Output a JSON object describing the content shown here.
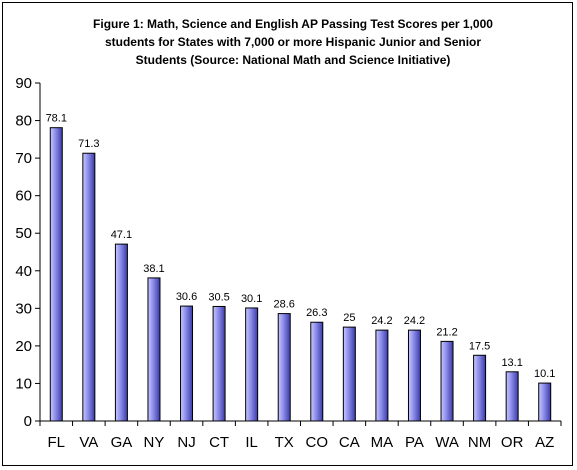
{
  "chart_data": {
    "type": "bar",
    "title": "Figure 1: Math, Science and English AP Passing Test Scores per 1,000\nstudents for States with 7,000 or more Hispanic Junior and Senior\nStudents (Source: National Math and Science Initiative)",
    "categories": [
      "FL",
      "VA",
      "GA",
      "NY",
      "NJ",
      "CT",
      "IL",
      "TX",
      "CO",
      "CA",
      "MA",
      "PA",
      "WA",
      "NM",
      "OR",
      "AZ"
    ],
    "values": [
      78.1,
      71.3,
      47.1,
      38.1,
      30.6,
      30.5,
      30.1,
      28.6,
      26.3,
      25,
      24.2,
      24.2,
      21.2,
      17.5,
      13.1,
      10.1
    ],
    "data_labels": [
      "78.1",
      "71.3",
      "47.1",
      "38.1",
      "30.6",
      "30.5",
      "30.1",
      "28.6",
      "26.3",
      "25",
      "24.2",
      "24.2",
      "21.2",
      "17.5",
      "13.1",
      "10.1"
    ],
    "ylim": [
      0,
      90
    ],
    "yticks": [
      0,
      10,
      20,
      30,
      40,
      50,
      60,
      70,
      80,
      90
    ],
    "xlabel": "",
    "ylabel": "",
    "grid": false,
    "legend": false,
    "colors": {
      "bar_light": "#c8c8ff",
      "bar_mid": "#8a8ae8",
      "bar_dark": "#3a3aa8",
      "bar_outline": "#000000",
      "axis": "#000000"
    }
  }
}
